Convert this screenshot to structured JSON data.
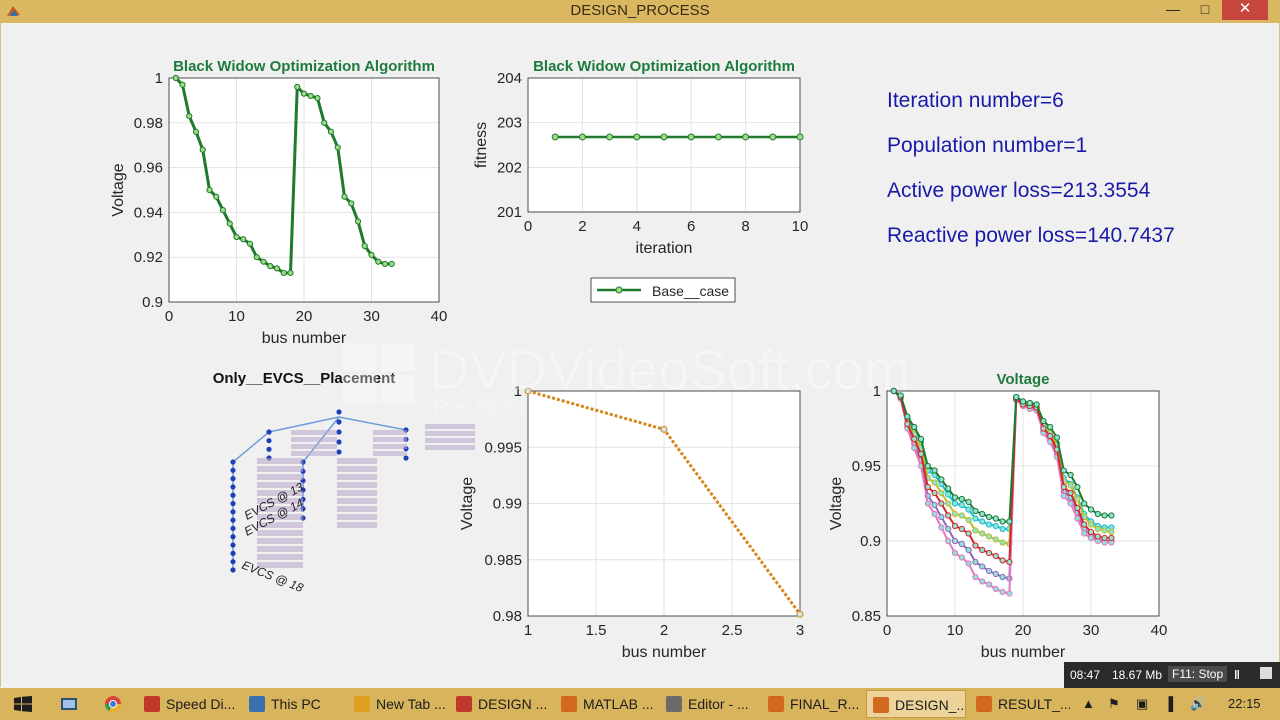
{
  "window": {
    "title": "DESIGN_PROCESS",
    "min_icon": "minimize-icon",
    "max_icon": "maximize-icon",
    "close_icon": "close-icon"
  },
  "info_panel": {
    "lines": [
      "Iteration number=6",
      "Population number=1",
      "Active power loss=213.3554",
      "Reactive power loss=140.7437"
    ]
  },
  "watermark": {
    "text": "DVDVideoSoft.com",
    "sub": "Free Studio"
  },
  "recorder": {
    "time": "08:47",
    "size": "18.67 Mb",
    "stop_label": "F11: Stop"
  },
  "taskbar": {
    "items": [
      {
        "label": "Speed Di...",
        "icon": "opera-icon",
        "color": "#c0392b"
      },
      {
        "label": "This PC",
        "icon": "computer-icon",
        "color": "#3a6fb0"
      },
      {
        "label": "New Tab ...",
        "icon": "chrome-icon",
        "color": "#e0a020"
      },
      {
        "label": "DESIGN ...",
        "icon": "pdf-icon",
        "color": "#c0392b"
      },
      {
        "label": "MATLAB ...",
        "icon": "matlab-icon",
        "color": "#d2691e"
      },
      {
        "label": "Editor - ...",
        "icon": "editor-icon",
        "color": "#6a6a6a"
      },
      {
        "label": "FINAL_R...",
        "icon": "matlab-figure-icon",
        "color": "#d2691e"
      },
      {
        "label": "DESIGN_...",
        "icon": "matlab-figure-icon",
        "color": "#d2691e"
      },
      {
        "label": "RESULT_...",
        "icon": "matlab-figure-icon",
        "color": "#d2691e"
      }
    ],
    "clock": "22:15"
  },
  "chart_data": [
    {
      "type": "line",
      "title": "Black Widow Optimization Algorithm",
      "xlabel": "bus number",
      "ylabel": "Voltage",
      "xlim": [
        0,
        40
      ],
      "ylim": [
        0.9,
        1
      ],
      "xticks": [
        "0",
        "10",
        "20",
        "30",
        "40"
      ],
      "yticks": [
        "0.9",
        "0.92",
        "0.94",
        "0.96",
        "0.98",
        "1"
      ],
      "grid": true,
      "series": [
        {
          "color": "#1f7a2e",
          "x": [
            1,
            2,
            3,
            4,
            5,
            6,
            7,
            8,
            9,
            10,
            11,
            12,
            13,
            14,
            15,
            16,
            17,
            18,
            19,
            20,
            21,
            22,
            23,
            24,
            25,
            26,
            27,
            28,
            29,
            30,
            31,
            32,
            33
          ],
          "values": [
            1.0,
            0.997,
            0.983,
            0.976,
            0.968,
            0.95,
            0.947,
            0.941,
            0.935,
            0.929,
            0.928,
            0.926,
            0.92,
            0.918,
            0.916,
            0.915,
            0.913,
            0.913,
            0.996,
            0.993,
            0.992,
            0.991,
            0.98,
            0.976,
            0.969,
            0.947,
            0.944,
            0.936,
            0.925,
            0.921,
            0.918,
            0.917,
            0.917
          ]
        }
      ]
    },
    {
      "type": "line",
      "title": "Black Widow Optimization Algorithm",
      "xlabel": "iteration",
      "ylabel": "fitness",
      "xlim": [
        0,
        10
      ],
      "ylim": [
        201,
        204
      ],
      "xticks": [
        "0",
        "2",
        "4",
        "6",
        "8",
        "10"
      ],
      "yticks": [
        "201",
        "202",
        "203",
        "204"
      ],
      "grid": true,
      "legend": {
        "position": "bottom",
        "entries": [
          "Base__case"
        ]
      },
      "series": [
        {
          "name": "Base__case",
          "color": "#1f7a2e",
          "x": [
            1,
            2,
            3,
            4,
            5,
            6,
            7,
            8,
            9,
            10
          ],
          "values": [
            202.68,
            202.68,
            202.68,
            202.68,
            202.68,
            202.68,
            202.68,
            202.68,
            202.68,
            202.68
          ]
        }
      ]
    },
    {
      "type": "diagram",
      "title": "Only__EVCS__Placement",
      "annotations": [
        "EVCS @ 13",
        "EVCS @ 14",
        "EVCS @ 18"
      ]
    },
    {
      "type": "line",
      "title": "",
      "xlabel": "bus number",
      "ylabel": "Voltage",
      "xlim": [
        1,
        3
      ],
      "ylim": [
        0.98,
        1
      ],
      "xticks": [
        "1",
        "1.5",
        "2",
        "2.5",
        "3"
      ],
      "yticks": [
        "0.98",
        "0.985",
        "0.99",
        "0.995",
        "1"
      ],
      "grid": true,
      "series": [
        {
          "color": "#d4861c",
          "x": [
            1,
            2,
            3
          ],
          "values": [
            1.0,
            0.99659,
            0.98016
          ]
        }
      ]
    },
    {
      "type": "line",
      "title": "Voltage",
      "xlabel": "bus number",
      "ylabel": "Voltage",
      "xlim": [
        0,
        40
      ],
      "ylim": [
        0.85,
        1
      ],
      "xticks": [
        "0",
        "10",
        "20",
        "30",
        "40"
      ],
      "yticks": [
        "0.85",
        "0.9",
        "0.95",
        "1"
      ],
      "grid": true,
      "series": [
        {
          "color": "#1f7a2e",
          "x": [
            1,
            2,
            3,
            4,
            5,
            6,
            7,
            8,
            9,
            10,
            11,
            12,
            13,
            14,
            15,
            16,
            17,
            18,
            19,
            20,
            21,
            22,
            23,
            24,
            25,
            26,
            27,
            28,
            29,
            30,
            31,
            32,
            33
          ],
          "values": [
            1.0,
            0.997,
            0.983,
            0.976,
            0.968,
            0.95,
            0.947,
            0.941,
            0.935,
            0.929,
            0.928,
            0.926,
            0.92,
            0.918,
            0.916,
            0.915,
            0.913,
            0.913,
            0.996,
            0.993,
            0.992,
            0.991,
            0.98,
            0.976,
            0.969,
            0.947,
            0.944,
            0.936,
            0.925,
            0.921,
            0.918,
            0.917,
            0.917
          ]
        },
        {
          "color": "#d62728",
          "x": [
            1,
            2,
            3,
            4,
            5,
            6,
            7,
            8,
            9,
            10,
            11,
            12,
            13,
            14,
            15,
            16,
            17,
            18,
            19,
            20,
            21,
            22,
            23,
            24,
            25,
            26,
            27,
            28,
            29,
            30,
            31,
            32,
            33
          ],
          "values": [
            1.0,
            0.996,
            0.978,
            0.968,
            0.958,
            0.936,
            0.932,
            0.925,
            0.917,
            0.91,
            0.908,
            0.905,
            0.897,
            0.894,
            0.892,
            0.89,
            0.887,
            0.886,
            0.995,
            0.991,
            0.99,
            0.989,
            0.975,
            0.97,
            0.961,
            0.936,
            0.932,
            0.922,
            0.911,
            0.906,
            0.903,
            0.902,
            0.902
          ]
        },
        {
          "color": "#e377c2",
          "x": [
            1,
            2,
            3,
            4,
            5,
            6,
            7,
            8,
            9,
            10,
            11,
            12,
            13,
            14,
            15,
            16,
            17,
            18,
            19,
            20,
            21,
            22,
            23,
            24,
            25,
            26,
            27,
            28,
            29,
            30,
            31,
            32,
            33
          ],
          "values": [
            1.0,
            0.995,
            0.975,
            0.962,
            0.95,
            0.925,
            0.918,
            0.909,
            0.9,
            0.892,
            0.889,
            0.885,
            0.876,
            0.873,
            0.871,
            0.868,
            0.866,
            0.865,
            0.994,
            0.99,
            0.988,
            0.987,
            0.972,
            0.966,
            0.956,
            0.93,
            0.925,
            0.915,
            0.905,
            0.902,
            0.9,
            0.899,
            0.899
          ]
        },
        {
          "color": "#bcbd22",
          "x": [
            1,
            2,
            3,
            4,
            5,
            6,
            7,
            8,
            9,
            10,
            11,
            12,
            13,
            14,
            15,
            16,
            17,
            18,
            19,
            20,
            21,
            22,
            23,
            24,
            25,
            26,
            27,
            28,
            29,
            30,
            31,
            32,
            33
          ],
          "values": [
            1.0,
            0.996,
            0.98,
            0.971,
            0.962,
            0.942,
            0.939,
            0.932,
            0.925,
            0.918,
            0.917,
            0.914,
            0.907,
            0.905,
            0.903,
            0.901,
            0.899,
            0.898,
            0.995,
            0.992,
            0.991,
            0.99,
            0.977,
            0.972,
            0.964,
            0.94,
            0.937,
            0.928,
            0.916,
            0.911,
            0.908,
            0.907,
            0.906
          ]
        },
        {
          "color": "#17becf",
          "x": [
            1,
            2,
            3,
            4,
            5,
            6,
            7,
            8,
            9,
            10,
            11,
            12,
            13,
            14,
            15,
            16,
            17,
            18,
            19,
            20,
            21,
            22,
            23,
            24,
            25,
            26,
            27,
            28,
            29,
            30,
            31,
            32,
            33
          ],
          "values": [
            1.0,
            0.997,
            0.982,
            0.974,
            0.966,
            0.947,
            0.944,
            0.938,
            0.931,
            0.925,
            0.924,
            0.921,
            0.915,
            0.913,
            0.911,
            0.91,
            0.908,
            0.908,
            0.996,
            0.993,
            0.992,
            0.991,
            0.978,
            0.973,
            0.965,
            0.942,
            0.938,
            0.929,
            0.918,
            0.913,
            0.91,
            0.909,
            0.909
          ]
        },
        {
          "color": "#9467bd",
          "x": [
            1,
            2,
            3,
            4,
            5,
            6,
            7,
            8,
            9,
            10,
            11,
            12,
            13,
            14,
            15,
            16,
            17,
            18,
            19,
            20,
            21,
            22,
            23,
            24,
            25,
            26,
            27,
            28,
            29,
            30,
            31,
            32,
            33
          ],
          "values": [
            1.0,
            0.995,
            0.976,
            0.965,
            0.954,
            0.93,
            0.924,
            0.916,
            0.908,
            0.9,
            0.898,
            0.894,
            0.886,
            0.883,
            0.88,
            0.878,
            0.876,
            0.875,
            0.994,
            0.99,
            0.989,
            0.988,
            0.973,
            0.967,
            0.958,
            0.933,
            0.929,
            0.919,
            0.908,
            0.904,
            0.901,
            0.9,
            0.9
          ]
        }
      ]
    }
  ]
}
